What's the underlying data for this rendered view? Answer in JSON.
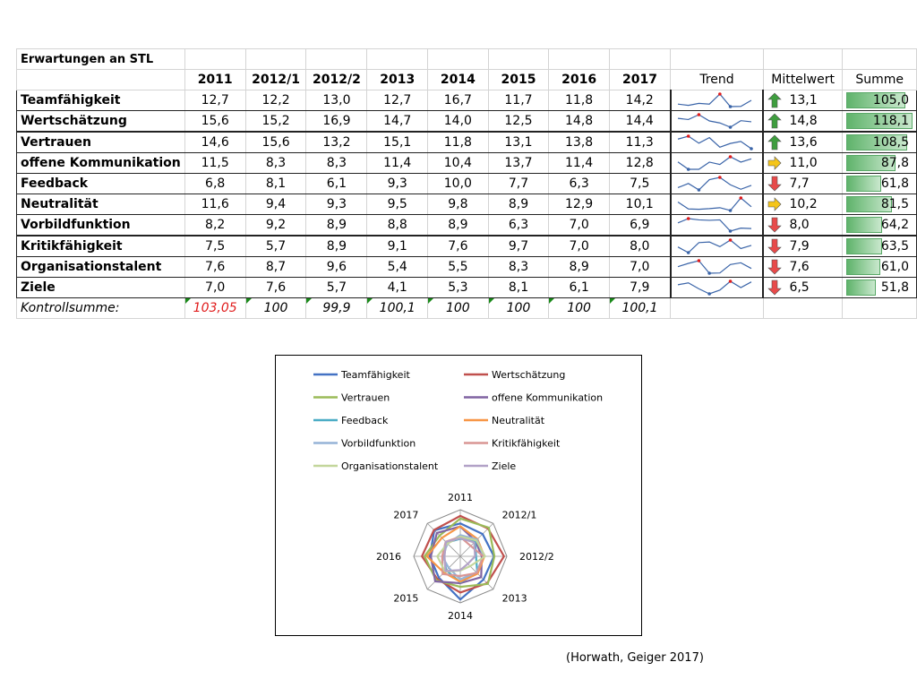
{
  "source": "(Horwath, Geiger 2017)",
  "chart_data": [
    {
      "type": "table",
      "title": "Erwartungen an STL",
      "columns": [
        "2011",
        "2012/1",
        "2012/2",
        "2013",
        "2014",
        "2015",
        "2016",
        "2017"
      ],
      "extra_columns": [
        "Trend",
        "Mittelwert",
        "Summe"
      ],
      "rows": [
        {
          "label": "Teamfähigkeit",
          "values": [
            "12,7",
            "12,2",
            "13,0",
            "12,7",
            "16,7",
            "11,7",
            "11,8",
            "14,2"
          ],
          "mean": "13,1",
          "trend": "up",
          "sum": "105,0"
        },
        {
          "label": "Wertschätzung",
          "values": [
            "15,6",
            "15,2",
            "16,9",
            "14,7",
            "14,0",
            "12,5",
            "14,8",
            "14,4"
          ],
          "mean": "14,8",
          "trend": "up",
          "sum": "118,1"
        },
        {
          "label": "Vertrauen",
          "values": [
            "14,6",
            "15,6",
            "13,2",
            "15,1",
            "11,8",
            "13,1",
            "13,8",
            "11,3"
          ],
          "mean": "13,6",
          "trend": "up",
          "sum": "108,5"
        },
        {
          "label": "offene Kommunikation",
          "values": [
            "11,5",
            "8,3",
            "8,3",
            "11,4",
            "10,4",
            "13,7",
            "11,4",
            "12,8"
          ],
          "mean": "11,0",
          "trend": "side",
          "sum": "87,8"
        },
        {
          "label": "Feedback",
          "values": [
            "6,8",
            "8,1",
            "6,1",
            "9,3",
            "10,0",
            "7,7",
            "6,3",
            "7,5"
          ],
          "mean": "7,7",
          "trend": "down",
          "sum": "61,8"
        },
        {
          "label": "Neutralität",
          "values": [
            "11,6",
            "9,4",
            "9,3",
            "9,5",
            "9,8",
            "8,9",
            "12,9",
            "10,1"
          ],
          "mean": "10,2",
          "trend": "side",
          "sum": "81,5"
        },
        {
          "label": "Vorbildfunktion",
          "values": [
            "8,2",
            "9,2",
            "8,9",
            "8,8",
            "8,9",
            "6,3",
            "7,0",
            "6,9"
          ],
          "mean": "8,0",
          "trend": "down",
          "sum": "64,2"
        },
        {
          "label": "Kritikfähigkeit",
          "values": [
            "7,5",
            "5,7",
            "8,9",
            "9,1",
            "7,6",
            "9,7",
            "7,0",
            "8,0"
          ],
          "mean": "7,9",
          "trend": "down",
          "sum": "63,5"
        },
        {
          "label": "Organisationstalent",
          "values": [
            "7,6",
            "8,7",
            "9,6",
            "5,4",
            "5,5",
            "8,3",
            "8,9",
            "7,0"
          ],
          "mean": "7,6",
          "trend": "down",
          "sum": "61,0"
        },
        {
          "label": "Ziele",
          "values": [
            "7,0",
            "7,6",
            "5,7",
            "4,1",
            "5,3",
            "8,1",
            "6,1",
            "7,9"
          ],
          "mean": "6,5",
          "trend": "down",
          "sum": "51,8"
        }
      ],
      "control_row": {
        "label": "Kontrollsumme:",
        "values": [
          "103,05",
          "100",
          "99,9",
          "100,1",
          "100",
          "100",
          "100",
          "100,1"
        ],
        "highlight_color": "#e01b1b"
      },
      "colors": {
        "arrow_up": "#3e9e3e",
        "arrow_side": "#f5c518",
        "arrow_down": "#e84a4a",
        "sparkline": "#3a64a8",
        "sparkline_high": "#e01b1b",
        "sum_bar": "#5fb36b"
      }
    },
    {
      "type": "radar",
      "categories": [
        "2011",
        "2012/1",
        "2012/2",
        "2013",
        "2014",
        "2015",
        "2016",
        "2017"
      ],
      "rmax": 18,
      "series": [
        {
          "name": "Teamfähigkeit",
          "color": "#4472c4",
          "values": [
            12.7,
            12.2,
            13.0,
            12.7,
            16.7,
            11.7,
            11.8,
            14.2
          ]
        },
        {
          "name": "Wertschätzung",
          "color": "#c0504d",
          "values": [
            15.6,
            15.2,
            16.9,
            14.7,
            14.0,
            12.5,
            14.8,
            14.4
          ]
        },
        {
          "name": "Vertrauen",
          "color": "#9bbb59",
          "values": [
            14.6,
            15.6,
            13.2,
            15.1,
            11.8,
            13.1,
            13.8,
            11.3
          ]
        },
        {
          "name": "offene Kommunikation",
          "color": "#8064a2",
          "values": [
            11.5,
            8.3,
            8.3,
            11.4,
            10.4,
            13.7,
            11.4,
            12.8
          ]
        },
        {
          "name": "Feedback",
          "color": "#4bacc6",
          "values": [
            6.8,
            8.1,
            6.1,
            9.3,
            10.0,
            7.7,
            6.3,
            7.5
          ]
        },
        {
          "name": "Neutralität",
          "color": "#f79646",
          "values": [
            11.6,
            9.4,
            9.3,
            9.5,
            9.8,
            8.9,
            12.9,
            10.1
          ]
        },
        {
          "name": "Vorbildfunktion",
          "color": "#95b3d7",
          "values": [
            8.2,
            9.2,
            8.9,
            8.8,
            8.9,
            6.3,
            7.0,
            6.9
          ]
        },
        {
          "name": "Kritikfähigkeit",
          "color": "#d99694",
          "values": [
            7.5,
            5.7,
            8.9,
            9.1,
            7.6,
            9.7,
            7.0,
            8.0
          ]
        },
        {
          "name": "Organisationstalent",
          "color": "#c3d69b",
          "values": [
            7.6,
            8.7,
            9.6,
            5.4,
            5.5,
            8.3,
            8.9,
            7.0
          ]
        },
        {
          "name": "Ziele",
          "color": "#b2a2c7",
          "values": [
            7.0,
            7.6,
            5.7,
            4.1,
            5.3,
            8.1,
            6.1,
            7.9
          ]
        }
      ],
      "legend": "top"
    }
  ]
}
